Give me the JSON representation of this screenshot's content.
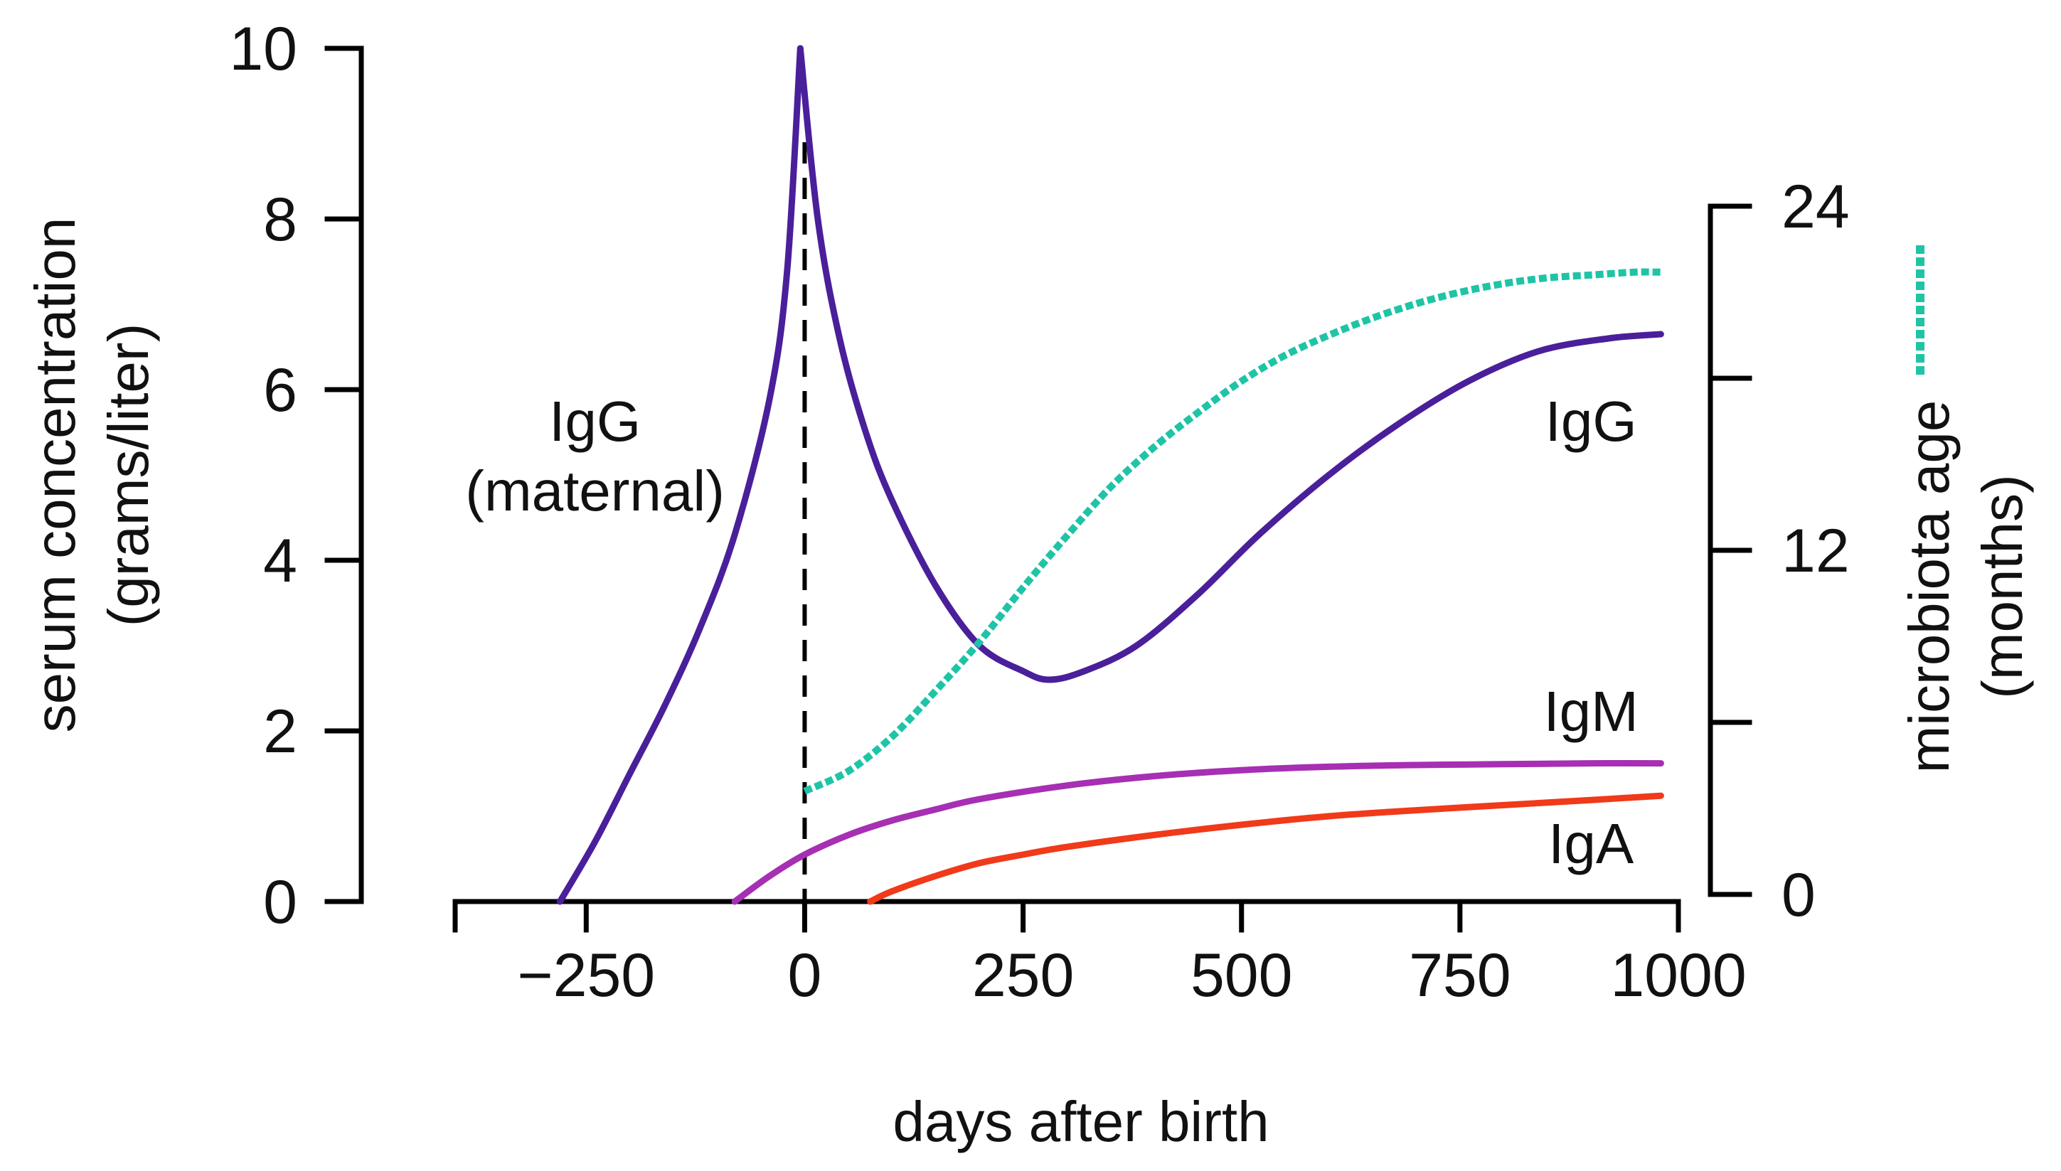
{
  "chart_data": {
    "type": "line",
    "title": "",
    "xlabel": "days after birth",
    "ylabel_left": [
      "serum concentration",
      "(grams/liter)"
    ],
    "ylabel_right": [
      "microbiota age",
      "(months)"
    ],
    "xlim": [
      -400,
      1000
    ],
    "ylim_left": [
      0,
      10
    ],
    "ylim_right": [
      0,
      24
    ],
    "x_ticks": [
      -250,
      0,
      250,
      500,
      750,
      1000
    ],
    "x_tick_labels": [
      "−250",
      "0",
      "250",
      "500",
      "750",
      "1000"
    ],
    "y_left_ticks": [
      0,
      2,
      4,
      6,
      8,
      10
    ],
    "y_left_tick_labels": [
      "0",
      "2",
      "4",
      "6",
      "8",
      "10"
    ],
    "y_right_ticks": [
      0,
      6,
      12,
      18,
      24
    ],
    "y_right_tick_labels": [
      "0",
      "",
      "12",
      "",
      "24"
    ],
    "birth_marker": {
      "x": 0,
      "y_top": 8.9,
      "style": "dashed"
    },
    "legend": {
      "label": "microbiota age",
      "placement": "right"
    },
    "series": [
      {
        "name": "IgG (maternal)",
        "axis": "left",
        "color": "#4a1f9a",
        "style": "solid",
        "x": [
          -280,
          -240,
          -200,
          -160,
          -120,
          -80,
          -40,
          -20,
          -5
        ],
        "y": [
          0,
          0.7,
          1.5,
          2.3,
          3.2,
          4.3,
          5.9,
          7.4,
          10
        ]
      },
      {
        "name": "IgG",
        "axis": "left",
        "color": "#4a1f9a",
        "style": "solid",
        "x": [
          -5,
          15,
          40,
          70,
          100,
          150,
          200,
          250,
          280,
          320,
          380,
          450,
          520,
          600,
          680,
          760,
          840,
          920,
          980
        ],
        "y": [
          10,
          8.0,
          6.6,
          5.5,
          4.7,
          3.7,
          3.0,
          2.7,
          2.6,
          2.7,
          3.0,
          3.6,
          4.3,
          5.0,
          5.6,
          6.1,
          6.45,
          6.6,
          6.65
        ]
      },
      {
        "name": "IgM",
        "axis": "left",
        "color": "#a62fb3",
        "style": "solid",
        "x": [
          -80,
          -40,
          0,
          50,
          100,
          150,
          200,
          300,
          400,
          500,
          600,
          700,
          800,
          900,
          980
        ],
        "y": [
          0,
          0.3,
          0.55,
          0.78,
          0.95,
          1.08,
          1.2,
          1.36,
          1.47,
          1.54,
          1.58,
          1.6,
          1.61,
          1.62,
          1.62
        ]
      },
      {
        "name": "IgA",
        "axis": "left",
        "color": "#f03a1a",
        "style": "solid",
        "x": [
          75,
          100,
          150,
          200,
          250,
          300,
          400,
          500,
          600,
          700,
          800,
          900,
          980
        ],
        "y": [
          0,
          0.12,
          0.3,
          0.45,
          0.55,
          0.64,
          0.78,
          0.9,
          1.0,
          1.07,
          1.13,
          1.19,
          1.24
        ]
      },
      {
        "name": "microbiota age",
        "axis": "right",
        "color": "#1fc4a6",
        "style": "dotted",
        "x": [
          0,
          50,
          100,
          150,
          200,
          250,
          300,
          350,
          400,
          450,
          500,
          550,
          600,
          650,
          700,
          750,
          800,
          850,
          900,
          950,
          980
        ],
        "y": [
          3.6,
          4.3,
          5.5,
          7.1,
          8.8,
          10.7,
          12.5,
          14.2,
          15.6,
          16.8,
          17.9,
          18.8,
          19.5,
          20.1,
          20.6,
          21.0,
          21.3,
          21.5,
          21.6,
          21.7,
          21.7
        ]
      }
    ],
    "series_labels": [
      {
        "lines": [
          "IgG",
          "(maternal)"
        ],
        "x": -240,
        "y": 5.4,
        "axis": "left",
        "anchor": "middle"
      },
      {
        "lines": [
          "IgG"
        ],
        "x": 900,
        "y": 5.4,
        "axis": "left",
        "anchor": "middle"
      },
      {
        "lines": [
          "IgM"
        ],
        "x": 900,
        "y": 2.0,
        "axis": "left",
        "anchor": "middle"
      },
      {
        "lines": [
          "IgA"
        ],
        "x": 900,
        "y": 0.45,
        "axis": "left",
        "anchor": "middle"
      }
    ]
  }
}
